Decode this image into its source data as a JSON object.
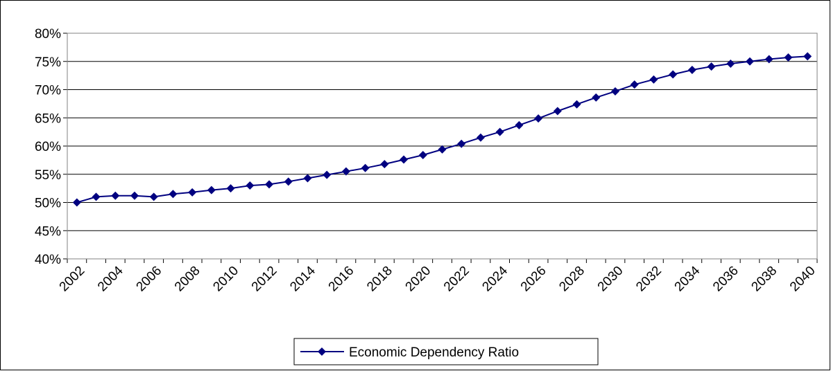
{
  "chart_data": {
    "type": "line",
    "title": "",
    "xlabel": "",
    "ylabel": "",
    "x": [
      2002,
      2003,
      2004,
      2005,
      2006,
      2007,
      2008,
      2009,
      2010,
      2011,
      2012,
      2013,
      2014,
      2015,
      2016,
      2017,
      2018,
      2019,
      2020,
      2021,
      2022,
      2023,
      2024,
      2025,
      2026,
      2027,
      2028,
      2029,
      2030,
      2031,
      2032,
      2033,
      2034,
      2035,
      2036,
      2037,
      2038,
      2039,
      2040
    ],
    "x_tick_labels": [
      "2002",
      "2004",
      "2006",
      "2008",
      "2010",
      "2012",
      "2014",
      "2016",
      "2018",
      "2020",
      "2022",
      "2024",
      "2026",
      "2028",
      "2030",
      "2032",
      "2034",
      "2036",
      "2038",
      "2040"
    ],
    "ylim": [
      0.4,
      0.8
    ],
    "y_tick_labels": [
      "40%",
      "45%",
      "50%",
      "55%",
      "60%",
      "65%",
      "70%",
      "75%",
      "80%"
    ],
    "grid": "horizontal",
    "legend_position": "bottom",
    "series": [
      {
        "name": "Economic Dependency Ratio",
        "color": "#000080",
        "marker": "diamond",
        "values": [
          0.5,
          0.51,
          0.512,
          0.512,
          0.51,
          0.515,
          0.518,
          0.522,
          0.525,
          0.53,
          0.532,
          0.537,
          0.543,
          0.549,
          0.555,
          0.561,
          0.568,
          0.576,
          0.584,
          0.594,
          0.604,
          0.615,
          0.625,
          0.637,
          0.649,
          0.662,
          0.674,
          0.686,
          0.697,
          0.709,
          0.718,
          0.727,
          0.735,
          0.741,
          0.746,
          0.75,
          0.754,
          0.757,
          0.759
        ]
      }
    ]
  }
}
